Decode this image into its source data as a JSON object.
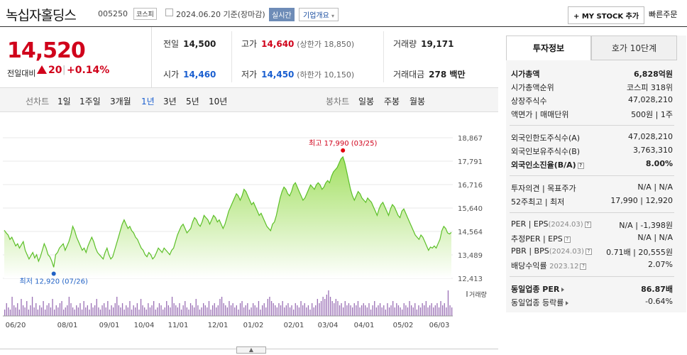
{
  "header": {
    "company_name": "녹십자홀딩스",
    "code": "005250",
    "market": "코스피",
    "date_text": "2024.06.20 기준(장마감)",
    "realtime_label": "실시간",
    "company_info_label": "기업개요",
    "my_stock_label": "+ MY STOCK 추가",
    "quick_order_label": "빠른주문"
  },
  "price": {
    "current": "14,520",
    "change_label": "전일대비",
    "change_value": "20",
    "change_pct": "+0.14%",
    "color_up": "#d0021b"
  },
  "stats": {
    "prev_close_label": "전일",
    "prev_close": "14,500",
    "high_label": "고가",
    "high": "14,640",
    "upper_limit": "(상한가 18,850)",
    "volume_label": "거래량",
    "volume": "19,171",
    "open_label": "시가",
    "open": "14,460",
    "low_label": "저가",
    "low": "14,450",
    "lower_limit": "(하한가 10,150)",
    "amount_label": "거래대금",
    "amount": "278 백만"
  },
  "periods": {
    "line_label": "선차트",
    "line_items": [
      "1일",
      "1주일",
      "3개월",
      "1년",
      "3년",
      "5년",
      "10년"
    ],
    "selected": "1년",
    "candle_label": "봉차트",
    "candle_items": [
      "일봉",
      "주봉",
      "월봉"
    ]
  },
  "chart_data": {
    "type": "area",
    "x_ticks": [
      "06/20",
      "08/01",
      "09/01",
      "10/04",
      "11/01",
      "12/01",
      "01/02",
      "02/01",
      "03/04",
      "04/01",
      "05/02",
      "06/03"
    ],
    "y_ticks": [
      "18,867",
      "17,791",
      "16,716",
      "15,640",
      "14,564",
      "13,489",
      "12,413"
    ],
    "ylim": [
      12413,
      18867
    ],
    "max_label": "최고 17,990 (03/25)",
    "min_label": "최저 12,920 (07/26)",
    "volume_label": "거래량",
    "series": [
      {
        "values": [
          14620,
          14500,
          14400,
          14200,
          14300,
          14100,
          13900,
          14000,
          13800,
          13950,
          14100,
          13700,
          13500,
          13300,
          13450,
          13600,
          13350,
          13500,
          13200,
          13400,
          13700,
          14000,
          13800,
          13500,
          13400,
          13200,
          12920,
          13500,
          13600,
          13800,
          13900,
          14000,
          13700,
          13900,
          14100,
          14400,
          14800,
          14600,
          14300,
          14100,
          13900,
          13700,
          13800,
          13600,
          13900,
          14100,
          14300,
          14100,
          13800,
          13600,
          13500,
          13400,
          13300,
          13600,
          13800,
          13500,
          13300,
          13400,
          13700,
          14000,
          14300,
          14600,
          14900,
          15100,
          14900,
          14700,
          14800,
          14600,
          14500,
          14300,
          14200,
          14000,
          13800,
          13700,
          13500,
          13400,
          13600,
          13500,
          13300,
          13400,
          13600,
          13800,
          13700,
          13600,
          13800,
          13700,
          13600,
          13500,
          13700,
          13800,
          14100,
          14400,
          14600,
          14800,
          14900,
          14700,
          14500,
          14600,
          14700,
          15000,
          15200,
          15100,
          14900,
          14800,
          15000,
          15300,
          15200,
          15100,
          14900,
          15100,
          15300,
          15200,
          15000,
          15100,
          14900,
          14700,
          14900,
          15200,
          15500,
          15700,
          15900,
          16100,
          16300,
          16200,
          16000,
          16200,
          16500,
          16400,
          16200,
          16000,
          15800,
          15900,
          15700,
          15500,
          15300,
          15400,
          15200,
          15000,
          14800,
          14700,
          14600,
          14900,
          15000,
          15300,
          15700,
          16100,
          16400,
          16600,
          16500,
          16300,
          16200,
          16400,
          16700,
          16800,
          16600,
          16400,
          16200,
          16000,
          16100,
          16300,
          16500,
          16700,
          16600,
          16500,
          16700,
          16800,
          16700,
          16500,
          16600,
          16800,
          16900,
          16800,
          17100,
          17300,
          17400,
          17500,
          17700,
          17900,
          17990,
          17700,
          17300,
          16900,
          16500,
          16200,
          16000,
          16200,
          16400,
          16300,
          16100,
          16000,
          15900,
          16100,
          16000,
          15900,
          15700,
          15500,
          15300,
          15600,
          15800,
          15900,
          15700,
          15500,
          15300,
          15600,
          15800,
          15700,
          15500,
          15300,
          15200,
          15500,
          15600,
          15400,
          15200,
          15000,
          14800,
          14600,
          14400,
          14300,
          14200,
          14400,
          14300,
          14100,
          13900,
          13700,
          13850,
          13800,
          13900,
          13800,
          14000,
          14200,
          14600,
          14800,
          14700,
          14500,
          14450,
          14520
        ]
      }
    ],
    "volume": [
      3,
      6,
      4,
      3,
      9,
      5,
      4,
      6,
      3,
      8,
      5,
      4,
      7,
      3,
      5,
      9,
      4,
      6,
      3,
      5,
      4,
      7,
      3,
      5,
      6,
      4,
      8,
      3,
      5,
      4,
      6,
      7,
      3,
      4,
      5,
      9,
      6,
      4,
      3,
      5,
      4,
      6,
      3,
      7,
      4,
      5,
      3,
      6,
      4,
      5,
      8,
      4,
      3,
      5,
      6,
      4,
      7,
      3,
      5,
      4,
      6,
      9,
      5,
      4,
      6,
      3,
      5,
      4,
      7,
      3,
      5,
      4,
      6,
      3,
      8,
      5,
      4,
      3,
      6,
      4,
      5,
      7,
      3,
      4,
      6,
      5,
      3,
      4,
      7,
      5,
      4,
      9,
      6,
      5,
      4,
      6,
      3,
      5,
      7,
      4,
      3,
      6,
      5,
      4,
      8,
      5,
      3,
      4,
      6,
      5,
      4,
      7,
      3,
      5,
      6,
      4,
      5,
      8,
      9,
      6,
      5,
      4,
      7,
      5,
      6,
      4,
      5,
      3,
      6,
      7,
      4,
      5,
      6,
      3,
      4,
      6,
      5,
      4,
      7,
      3,
      5,
      6,
      4,
      8,
      9,
      7,
      6,
      5,
      4,
      6,
      5,
      7,
      4,
      5,
      6,
      4,
      5,
      3,
      6,
      5,
      4,
      7,
      5,
      6,
      4,
      5,
      3,
      6,
      4,
      5,
      8,
      6,
      7,
      9,
      8,
      10,
      12,
      9,
      7,
      6,
      8,
      7,
      5,
      6,
      4,
      7,
      5,
      6,
      5,
      4,
      6,
      5,
      7,
      4,
      5,
      6,
      5,
      4,
      6,
      3,
      5,
      7,
      4,
      5,
      6,
      4,
      5,
      3,
      6,
      4,
      5,
      7,
      4,
      6,
      5,
      4,
      3,
      6,
      5,
      4,
      7,
      5,
      4,
      6,
      3,
      5,
      4,
      6,
      5,
      7,
      4,
      5,
      6,
      4,
      5,
      6,
      4,
      7,
      5,
      6,
      4,
      12,
      5,
      4
    ]
  },
  "invest": {
    "tab_active": "투자정보",
    "tab_other": "호가 10단계",
    "market_cap_label": "시가총액",
    "market_cap": "6,828억원",
    "cap_rank_label": "시가총액순위",
    "cap_rank": "코스피 318위",
    "shares_label": "상장주식수",
    "shares": "47,028,210",
    "par_label": "액면가 | 매매단위",
    "par": "500원 | 1주",
    "foreign_limit_label": "외국인한도주식수(A)",
    "foreign_limit": "47,028,210",
    "foreign_hold_label": "외국인보유주식수(B)",
    "foreign_hold": "3,763,310",
    "foreign_ratio_label": "외국인소진율(B/A)",
    "foreign_ratio": "8.00%",
    "opinion_label": "투자의견 | 목표주가",
    "opinion": "N/A | N/A",
    "week52_label": "52주최고 | 최저",
    "week52": "17,990 | 12,920",
    "per_label": "PER | EPS",
    "per_period": "(2024.03)",
    "per": "N/A | -1,398원",
    "est_per_label": "추정PER | EPS",
    "est_per": "N/A | N/A",
    "pbr_label": "PBR | BPS",
    "pbr_period": "(2024.03)",
    "pbr": "0.71배 | 20,555원",
    "div_label": "배당수익률",
    "div_period": "2023.12",
    "div": "2.07%",
    "sector_per_label": "동일업종 PER",
    "sector_per": "86.87배",
    "sector_rate_label": "동일업종 등락률",
    "sector_rate": "-0.64%"
  }
}
